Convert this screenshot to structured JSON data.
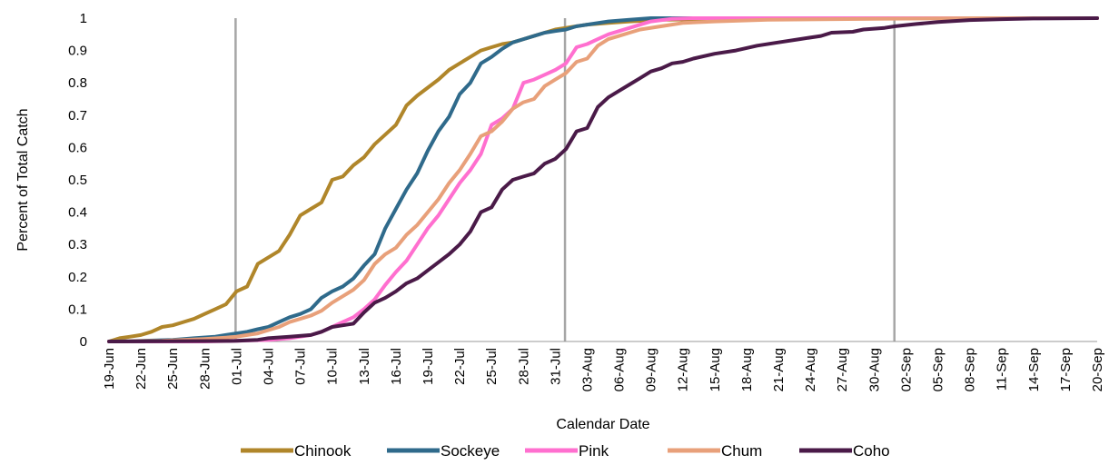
{
  "chart_data": {
    "type": "line",
    "xlabel": "Calendar Date",
    "ylabel": "Percent of Total Catch",
    "ylim": [
      0,
      1
    ],
    "yticks": [
      "0",
      "0.1",
      "0.2",
      "0.3",
      "0.4",
      "0.5",
      "0.6",
      "0.7",
      "0.8",
      "0.9",
      "1"
    ],
    "xtick_labels": [
      "19-Jun",
      "22-Jun",
      "25-Jun",
      "28-Jun",
      "01-Jul",
      "04-Jul",
      "07-Jul",
      "10-Jul",
      "13-Jul",
      "16-Jul",
      "19-Jul",
      "22-Jul",
      "25-Jul",
      "28-Jul",
      "31-Jul",
      "03-Aug",
      "06-Aug",
      "09-Aug",
      "12-Aug",
      "15-Aug",
      "18-Aug",
      "21-Aug",
      "24-Aug",
      "27-Aug",
      "30-Aug",
      "02-Sep",
      "05-Sep",
      "08-Sep",
      "11-Sep",
      "14-Sep",
      "17-Sep",
      "20-Sep"
    ],
    "x_range": [
      "19-Jun",
      "20-Sep"
    ],
    "vertical_gridlines": [
      "01-Jul",
      "01-Aug",
      "01-Sep"
    ],
    "legend_position": "bottom",
    "series": [
      {
        "name": "Chinook",
        "color": "#B0862A",
        "points": [
          [
            "19-Jun",
            0
          ],
          [
            "20-Jun",
            0.01
          ],
          [
            "21-Jun",
            0.015
          ],
          [
            "22-Jun",
            0.02
          ],
          [
            "23-Jun",
            0.03
          ],
          [
            "24-Jun",
            0.045
          ],
          [
            "25-Jun",
            0.05
          ],
          [
            "26-Jun",
            0.06
          ],
          [
            "27-Jun",
            0.07
          ],
          [
            "28-Jun",
            0.085
          ],
          [
            "29-Jun",
            0.1
          ],
          [
            "30-Jun",
            0.115
          ],
          [
            "01-Jul",
            0.155
          ],
          [
            "02-Jul",
            0.17
          ],
          [
            "03-Jul",
            0.24
          ],
          [
            "04-Jul",
            0.26
          ],
          [
            "05-Jul",
            0.28
          ],
          [
            "06-Jul",
            0.33
          ],
          [
            "07-Jul",
            0.39
          ],
          [
            "08-Jul",
            0.41
          ],
          [
            "09-Jul",
            0.43
          ],
          [
            "10-Jul",
            0.5
          ],
          [
            "11-Jul",
            0.51
          ],
          [
            "12-Jul",
            0.545
          ],
          [
            "13-Jul",
            0.57
          ],
          [
            "14-Jul",
            0.61
          ],
          [
            "15-Jul",
            0.64
          ],
          [
            "16-Jul",
            0.67
          ],
          [
            "17-Jul",
            0.73
          ],
          [
            "18-Jul",
            0.76
          ],
          [
            "19-Jul",
            0.785
          ],
          [
            "20-Jul",
            0.81
          ],
          [
            "21-Jul",
            0.84
          ],
          [
            "22-Jul",
            0.86
          ],
          [
            "23-Jul",
            0.88
          ],
          [
            "24-Jul",
            0.9
          ],
          [
            "25-Jul",
            0.91
          ],
          [
            "26-Jul",
            0.92
          ],
          [
            "27-Jul",
            0.925
          ],
          [
            "28-Jul",
            0.935
          ],
          [
            "29-Jul",
            0.945
          ],
          [
            "30-Jul",
            0.955
          ],
          [
            "31-Jul",
            0.965
          ],
          [
            "01-Aug",
            0.97
          ],
          [
            "02-Aug",
            0.975
          ],
          [
            "03-Aug",
            0.98
          ],
          [
            "05-Aug",
            0.985
          ],
          [
            "07-Aug",
            0.99
          ],
          [
            "10-Aug",
            0.995
          ],
          [
            "15-Aug",
            0.997
          ],
          [
            "25-Aug",
            0.999
          ],
          [
            "05-Sep",
            1
          ],
          [
            "20-Sep",
            1
          ]
        ]
      },
      {
        "name": "Sockeye",
        "color": "#2F6A8B",
        "points": [
          [
            "19-Jun",
            0
          ],
          [
            "22-Jun",
            0.002
          ],
          [
            "25-Jun",
            0.005
          ],
          [
            "27-Jun",
            0.01
          ],
          [
            "29-Jun",
            0.015
          ],
          [
            "30-Jun",
            0.02
          ],
          [
            "01-Jul",
            0.025
          ],
          [
            "02-Jul",
            0.03
          ],
          [
            "03-Jul",
            0.038
          ],
          [
            "04-Jul",
            0.045
          ],
          [
            "05-Jul",
            0.06
          ],
          [
            "06-Jul",
            0.075
          ],
          [
            "07-Jul",
            0.085
          ],
          [
            "08-Jul",
            0.1
          ],
          [
            "09-Jul",
            0.135
          ],
          [
            "10-Jul",
            0.155
          ],
          [
            "11-Jul",
            0.17
          ],
          [
            "12-Jul",
            0.195
          ],
          [
            "13-Jul",
            0.235
          ],
          [
            "14-Jul",
            0.27
          ],
          [
            "15-Jul",
            0.35
          ],
          [
            "16-Jul",
            0.41
          ],
          [
            "17-Jul",
            0.47
          ],
          [
            "18-Jul",
            0.52
          ],
          [
            "19-Jul",
            0.59
          ],
          [
            "20-Jul",
            0.65
          ],
          [
            "21-Jul",
            0.695
          ],
          [
            "22-Jul",
            0.765
          ],
          [
            "23-Jul",
            0.8
          ],
          [
            "24-Jul",
            0.86
          ],
          [
            "25-Jul",
            0.88
          ],
          [
            "26-Jul",
            0.905
          ],
          [
            "27-Jul",
            0.925
          ],
          [
            "28-Jul",
            0.935
          ],
          [
            "29-Jul",
            0.945
          ],
          [
            "30-Jul",
            0.955
          ],
          [
            "31-Jul",
            0.96
          ],
          [
            "01-Aug",
            0.965
          ],
          [
            "02-Aug",
            0.975
          ],
          [
            "03-Aug",
            0.98
          ],
          [
            "05-Aug",
            0.99
          ],
          [
            "07-Aug",
            0.995
          ],
          [
            "09-Aug",
            1
          ],
          [
            "20-Sep",
            1
          ]
        ]
      },
      {
        "name": "Pink",
        "color": "#FF6FCF",
        "points": [
          [
            "19-Jun",
            0
          ],
          [
            "28-Jun",
            0
          ],
          [
            "01-Jul",
            0.002
          ],
          [
            "04-Jul",
            0.005
          ],
          [
            "06-Jul",
            0.01
          ],
          [
            "08-Jul",
            0.02
          ],
          [
            "09-Jul",
            0.03
          ],
          [
            "10-Jul",
            0.045
          ],
          [
            "11-Jul",
            0.06
          ],
          [
            "12-Jul",
            0.075
          ],
          [
            "13-Jul",
            0.1
          ],
          [
            "14-Jul",
            0.13
          ],
          [
            "15-Jul",
            0.175
          ],
          [
            "16-Jul",
            0.215
          ],
          [
            "17-Jul",
            0.25
          ],
          [
            "18-Jul",
            0.3
          ],
          [
            "19-Jul",
            0.35
          ],
          [
            "20-Jul",
            0.39
          ],
          [
            "21-Jul",
            0.44
          ],
          [
            "22-Jul",
            0.49
          ],
          [
            "23-Jul",
            0.53
          ],
          [
            "24-Jul",
            0.58
          ],
          [
            "25-Jul",
            0.67
          ],
          [
            "26-Jul",
            0.69
          ],
          [
            "27-Jul",
            0.72
          ],
          [
            "28-Jul",
            0.8
          ],
          [
            "29-Jul",
            0.81
          ],
          [
            "30-Jul",
            0.825
          ],
          [
            "31-Jul",
            0.84
          ],
          [
            "01-Aug",
            0.86
          ],
          [
            "02-Aug",
            0.91
          ],
          [
            "03-Aug",
            0.92
          ],
          [
            "04-Aug",
            0.935
          ],
          [
            "05-Aug",
            0.95
          ],
          [
            "07-Aug",
            0.97
          ],
          [
            "09-Aug",
            0.99
          ],
          [
            "11-Aug",
            0.998
          ],
          [
            "13-Aug",
            1
          ],
          [
            "20-Sep",
            1
          ]
        ]
      },
      {
        "name": "Chum",
        "color": "#E8A07A",
        "points": [
          [
            "19-Jun",
            0
          ],
          [
            "24-Jun",
            0.002
          ],
          [
            "28-Jun",
            0.008
          ],
          [
            "30-Jun",
            0.012
          ],
          [
            "01-Jul",
            0.015
          ],
          [
            "02-Jul",
            0.02
          ],
          [
            "03-Jul",
            0.025
          ],
          [
            "04-Jul",
            0.035
          ],
          [
            "05-Jul",
            0.045
          ],
          [
            "06-Jul",
            0.06
          ],
          [
            "07-Jul",
            0.07
          ],
          [
            "08-Jul",
            0.08
          ],
          [
            "09-Jul",
            0.095
          ],
          [
            "10-Jul",
            0.12
          ],
          [
            "11-Jul",
            0.14
          ],
          [
            "12-Jul",
            0.16
          ],
          [
            "13-Jul",
            0.19
          ],
          [
            "14-Jul",
            0.24
          ],
          [
            "15-Jul",
            0.27
          ],
          [
            "16-Jul",
            0.29
          ],
          [
            "17-Jul",
            0.33
          ],
          [
            "18-Jul",
            0.36
          ],
          [
            "19-Jul",
            0.4
          ],
          [
            "20-Jul",
            0.44
          ],
          [
            "21-Jul",
            0.49
          ],
          [
            "22-Jul",
            0.53
          ],
          [
            "23-Jul",
            0.58
          ],
          [
            "24-Jul",
            0.635
          ],
          [
            "25-Jul",
            0.65
          ],
          [
            "26-Jul",
            0.68
          ],
          [
            "27-Jul",
            0.72
          ],
          [
            "28-Jul",
            0.74
          ],
          [
            "29-Jul",
            0.75
          ],
          [
            "30-Jul",
            0.79
          ],
          [
            "31-Jul",
            0.81
          ],
          [
            "01-Aug",
            0.83
          ],
          [
            "02-Aug",
            0.865
          ],
          [
            "03-Aug",
            0.875
          ],
          [
            "04-Aug",
            0.915
          ],
          [
            "05-Aug",
            0.935
          ],
          [
            "06-Aug",
            0.945
          ],
          [
            "07-Aug",
            0.955
          ],
          [
            "08-Aug",
            0.965
          ],
          [
            "10-Aug",
            0.975
          ],
          [
            "12-Aug",
            0.985
          ],
          [
            "15-Aug",
            0.99
          ],
          [
            "20-Aug",
            0.995
          ],
          [
            "30-Aug",
            0.998
          ],
          [
            "08-Sep",
            1
          ],
          [
            "20-Sep",
            1
          ]
        ]
      },
      {
        "name": "Coho",
        "color": "#4A1A48",
        "points": [
          [
            "19-Jun",
            0
          ],
          [
            "01-Jul",
            0.002
          ],
          [
            "03-Jul",
            0.005
          ],
          [
            "04-Jul",
            0.01
          ],
          [
            "06-Jul",
            0.015
          ],
          [
            "08-Jul",
            0.02
          ],
          [
            "09-Jul",
            0.03
          ],
          [
            "10-Jul",
            0.045
          ],
          [
            "11-Jul",
            0.05
          ],
          [
            "12-Jul",
            0.055
          ],
          [
            "13-Jul",
            0.09
          ],
          [
            "14-Jul",
            0.12
          ],
          [
            "15-Jul",
            0.135
          ],
          [
            "16-Jul",
            0.155
          ],
          [
            "17-Jul",
            0.18
          ],
          [
            "18-Jul",
            0.195
          ],
          [
            "19-Jul",
            0.22
          ],
          [
            "20-Jul",
            0.245
          ],
          [
            "21-Jul",
            0.27
          ],
          [
            "22-Jul",
            0.3
          ],
          [
            "23-Jul",
            0.34
          ],
          [
            "24-Jul",
            0.4
          ],
          [
            "25-Jul",
            0.415
          ],
          [
            "26-Jul",
            0.47
          ],
          [
            "27-Jul",
            0.5
          ],
          [
            "28-Jul",
            0.51
          ],
          [
            "29-Jul",
            0.52
          ],
          [
            "30-Jul",
            0.55
          ],
          [
            "31-Jul",
            0.565
          ],
          [
            "01-Aug",
            0.595
          ],
          [
            "02-Aug",
            0.65
          ],
          [
            "03-Aug",
            0.66
          ],
          [
            "04-Aug",
            0.725
          ],
          [
            "05-Aug",
            0.755
          ],
          [
            "06-Aug",
            0.775
          ],
          [
            "07-Aug",
            0.795
          ],
          [
            "08-Aug",
            0.815
          ],
          [
            "09-Aug",
            0.835
          ],
          [
            "10-Aug",
            0.845
          ],
          [
            "11-Aug",
            0.86
          ],
          [
            "12-Aug",
            0.865
          ],
          [
            "13-Aug",
            0.875
          ],
          [
            "15-Aug",
            0.89
          ],
          [
            "17-Aug",
            0.9
          ],
          [
            "19-Aug",
            0.915
          ],
          [
            "21-Aug",
            0.925
          ],
          [
            "23-Aug",
            0.935
          ],
          [
            "25-Aug",
            0.945
          ],
          [
            "26-Aug",
            0.955
          ],
          [
            "28-Aug",
            0.958
          ],
          [
            "29-Aug",
            0.965
          ],
          [
            "31-Aug",
            0.97
          ],
          [
            "01-Sep",
            0.975
          ],
          [
            "03-Sep",
            0.982
          ],
          [
            "05-Sep",
            0.988
          ],
          [
            "08-Sep",
            0.994
          ],
          [
            "11-Sep",
            0.997
          ],
          [
            "14-Sep",
            0.999
          ],
          [
            "20-Sep",
            1
          ]
        ]
      }
    ]
  }
}
